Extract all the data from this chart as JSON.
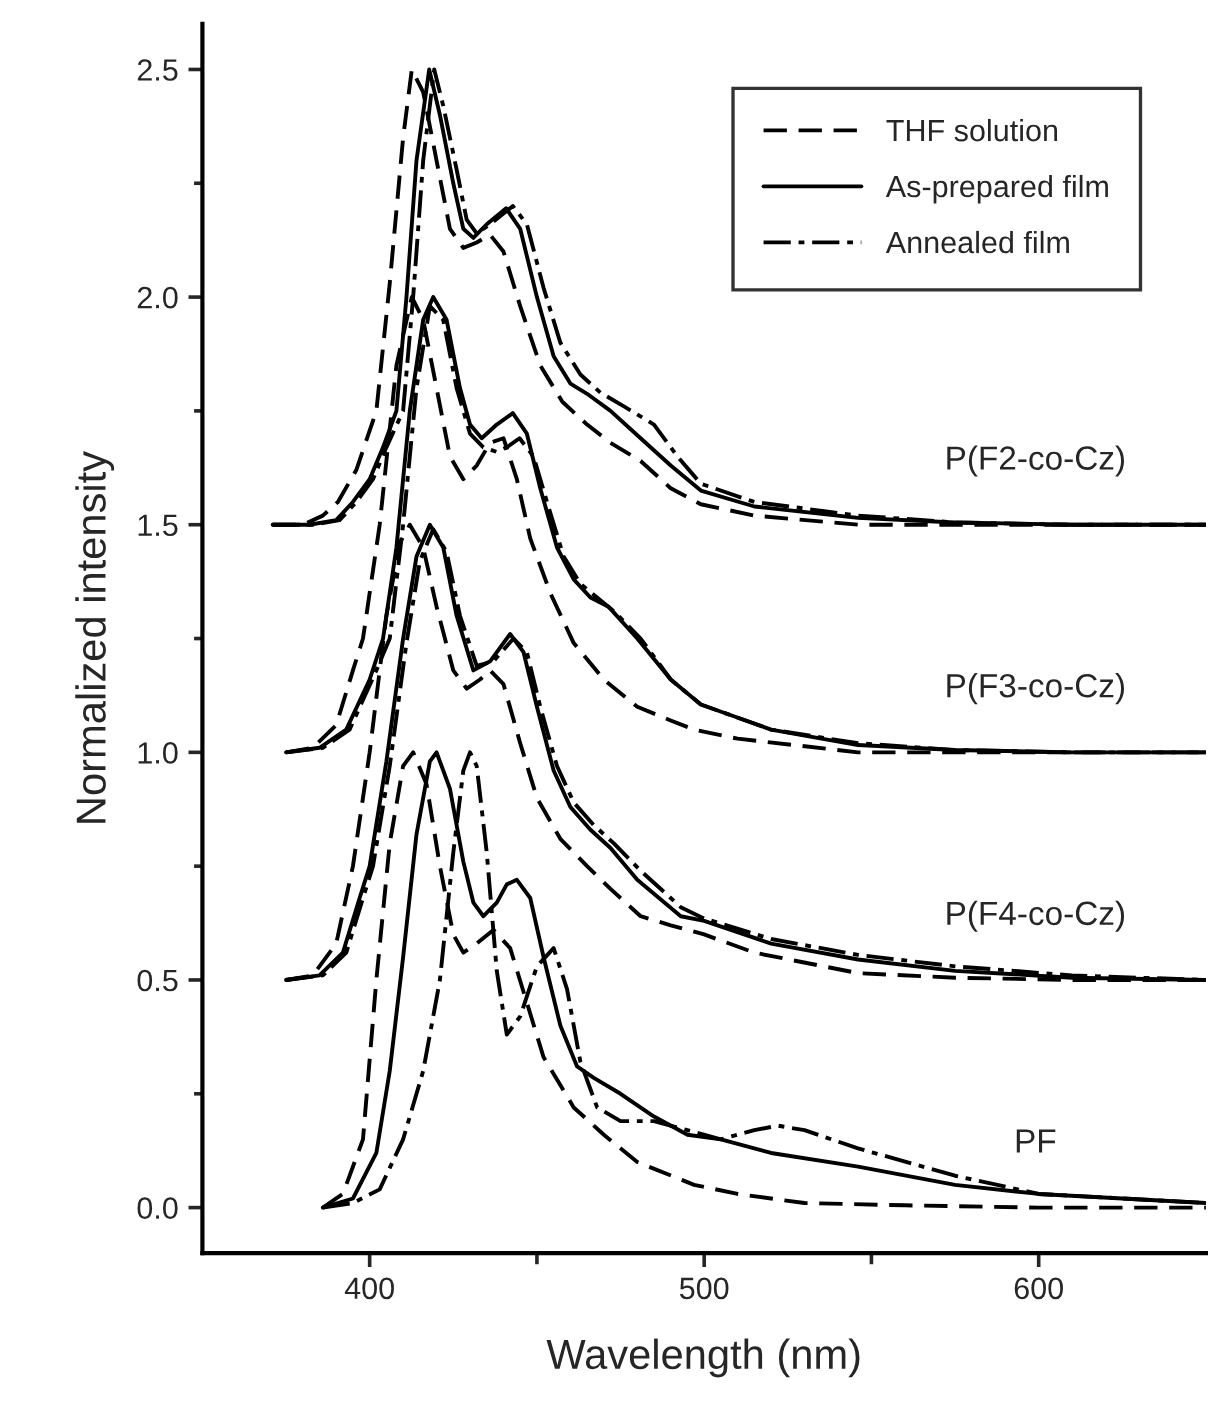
{
  "chart_data": {
    "type": "line",
    "xlabel": "Wavelength (nm)",
    "ylabel": "Normalized intensity",
    "xlim": [
      350,
      650
    ],
    "ylim": [
      -0.1,
      2.6
    ],
    "xticks": [
      400,
      {
        "value": 450,
        "label": null
      },
      500,
      {
        "value": 550,
        "label": null
      },
      600
    ],
    "yticks": [
      {
        "value": 0,
        "label": "0.0"
      },
      {
        "value": 0.25,
        "label": null
      },
      {
        "value": 0.5,
        "label": "0.5"
      },
      {
        "value": 0.75,
        "label": null
      },
      {
        "value": 1.0,
        "label": "1.0"
      },
      {
        "value": 1.25,
        "label": null
      },
      {
        "value": 1.5,
        "label": "1.5"
      },
      {
        "value": 1.75,
        "label": null
      },
      {
        "value": 2.0,
        "label": "2.0"
      },
      {
        "value": 2.25,
        "label": null
      },
      {
        "value": 2.5,
        "label": "2.5"
      }
    ],
    "grid": false,
    "legend": "top right",
    "marker": "none",
    "annotations": [
      "P(F2-co-Cz)",
      "P(F3-co-Cz)",
      "P(F4-co-Cz)",
      "PF"
    ],
    "series": [
      {
        "name": "THF solution",
        "color": "#000000",
        "line_style": "dashed",
        "x": [
          371,
          380,
          386,
          390.5,
          396,
          402,
          406,
          410,
          412.6,
          416,
          420,
          424,
          428,
          432,
          436,
          440,
          445,
          451,
          457.6,
          465,
          472,
          481,
          490,
          499,
          515,
          546,
          575,
          610,
          650
        ],
        "values": [
          1.5,
          1.5,
          1.52,
          1.55,
          1.62,
          1.75,
          2.03,
          2.35,
          2.5,
          2.45,
          2.3,
          2.15,
          2.108,
          2.12,
          2.137,
          2.1,
          1.98,
          1.85,
          1.77,
          1.72,
          1.68,
          1.64,
          1.58,
          1.545,
          1.52,
          1.5,
          1.5,
          1.5,
          1.5
        ]
      },
      {
        "name": "As-prepared film",
        "color": "#000000",
        "line_style": "solid",
        "x": [
          371,
          382,
          390,
          395,
          400,
          404,
          408,
          411,
          414,
          417.8,
          421,
          425,
          428,
          431,
          435,
          440.8,
          445,
          450,
          455,
          460,
          465.5,
          472,
          481,
          490,
          499,
          515,
          546,
          575,
          610,
          650
        ],
        "values": [
          1.5,
          1.5,
          1.51,
          1.55,
          1.6,
          1.67,
          1.75,
          2.0,
          2.3,
          2.5,
          2.4,
          2.25,
          2.15,
          2.13,
          2.16,
          2.195,
          2.15,
          2.0,
          1.87,
          1.81,
          1.785,
          1.75,
          1.69,
          1.63,
          1.575,
          1.54,
          1.515,
          1.505,
          1.5,
          1.5
        ]
      },
      {
        "name": "Annealed film",
        "color": "#000000",
        "line_style": "dashdot",
        "x": [
          371,
          383,
          391,
          396,
          401,
          405,
          410,
          413,
          416,
          419.3,
          422,
          426,
          429,
          432,
          436,
          442.8,
          447,
          452,
          457,
          463,
          469,
          476,
          485,
          492,
          499,
          515,
          546,
          575,
          610,
          650
        ],
        "values": [
          1.5,
          1.5,
          1.51,
          1.55,
          1.6,
          1.67,
          1.75,
          2.0,
          2.3,
          2.5,
          2.42,
          2.28,
          2.17,
          2.14,
          2.16,
          2.2,
          2.16,
          2.02,
          1.9,
          1.83,
          1.79,
          1.76,
          1.72,
          1.65,
          1.59,
          1.55,
          1.52,
          1.505,
          1.5,
          1.5
        ]
      },
      {
        "color": "#000000",
        "line_style": "dashed",
        "x": [
          375,
          383,
          390,
          395,
          398,
          403,
          408,
          412.6,
          416,
          420,
          424,
          428,
          432,
          436,
          440,
          444,
          448,
          454,
          461,
          470,
          480,
          490,
          497,
          510,
          546,
          575,
          610,
          650
        ],
        "values": [
          1.0,
          1.01,
          1.06,
          1.18,
          1.25,
          1.5,
          1.85,
          2.0,
          1.95,
          1.8,
          1.65,
          1.6,
          1.63,
          1.68,
          1.69,
          1.6,
          1.47,
          1.35,
          1.24,
          1.16,
          1.1,
          1.07,
          1.05,
          1.03,
          1.0,
          1.0,
          1.0,
          1.0
        ]
      },
      {
        "color": "#000000",
        "line_style": "solid",
        "x": [
          375,
          385,
          393,
          400,
          404,
          408,
          412,
          416,
          419,
          423,
          427,
          430,
          433.5,
          438,
          442.8,
          447,
          451,
          456,
          461,
          466,
          471.4,
          480,
          490,
          499,
          520,
          546,
          575,
          610,
          650
        ],
        "values": [
          1.0,
          1.01,
          1.05,
          1.16,
          1.25,
          1.45,
          1.75,
          1.95,
          2.0,
          1.95,
          1.8,
          1.72,
          1.69,
          1.72,
          1.745,
          1.7,
          1.58,
          1.45,
          1.38,
          1.34,
          1.32,
          1.25,
          1.16,
          1.105,
          1.05,
          1.016,
          1.005,
          1.0,
          1.0
        ]
      },
      {
        "color": "#000000",
        "line_style": "dashdot",
        "x": [
          375,
          386,
          394,
          402,
          406,
          410,
          414,
          418,
          422,
          426,
          430,
          434,
          438,
          441,
          444.8,
          449,
          453,
          458,
          463,
          468,
          473,
          481,
          490,
          499,
          520,
          546,
          575,
          610,
          650
        ],
        "values": [
          1.0,
          1.01,
          1.05,
          1.18,
          1.25,
          1.5,
          1.8,
          1.98,
          1.95,
          1.8,
          1.7,
          1.67,
          1.66,
          1.67,
          1.69,
          1.65,
          1.55,
          1.43,
          1.37,
          1.34,
          1.31,
          1.25,
          1.16,
          1.105,
          1.05,
          1.02,
          1.005,
          1.0,
          1.0
        ]
      },
      {
        "color": "#000000",
        "line_style": "dashed",
        "x": [
          375,
          383,
          390,
          395,
          400,
          405,
          409,
          412,
          416,
          420,
          425,
          429,
          433,
          436,
          440,
          445,
          450,
          457,
          465,
          472,
          481,
          490,
          500,
          515,
          546,
          575,
          610,
          650
        ],
        "values": [
          0.5,
          0.51,
          0.58,
          0.75,
          1.0,
          1.3,
          1.46,
          1.5,
          1.45,
          1.32,
          1.18,
          1.14,
          1.16,
          1.18,
          1.15,
          1.02,
          0.9,
          0.81,
          0.75,
          0.7,
          0.64,
          0.62,
          0.6,
          0.56,
          0.515,
          0.505,
          0.5,
          0.5
        ]
      },
      {
        "color": "#000000",
        "line_style": "solid",
        "x": [
          375,
          385,
          392,
          397,
          400,
          405,
          410,
          414,
          418,
          422,
          426,
          431,
          436,
          442,
          446,
          450,
          455,
          460,
          466,
          472,
          480,
          493,
          500,
          520,
          546,
          575,
          610,
          650
        ],
        "values": [
          0.5,
          0.51,
          0.56,
          0.68,
          0.75,
          0.98,
          1.25,
          1.43,
          1.5,
          1.45,
          1.3,
          1.18,
          1.2,
          1.26,
          1.22,
          1.1,
          0.96,
          0.88,
          0.83,
          0.79,
          0.72,
          0.64,
          0.63,
          0.58,
          0.545,
          0.52,
          0.505,
          0.5
        ]
      },
      {
        "color": "#000000",
        "line_style": "dashdot",
        "x": [
          375,
          386,
          393,
          398,
          401,
          406,
          411,
          415,
          419,
          423,
          427,
          432,
          437,
          443,
          447,
          451,
          456,
          461,
          467,
          473,
          481,
          493,
          500,
          520,
          546,
          575,
          610,
          650
        ],
        "values": [
          0.5,
          0.51,
          0.56,
          0.68,
          0.75,
          0.97,
          1.24,
          1.42,
          1.49,
          1.44,
          1.3,
          1.19,
          1.2,
          1.25,
          1.22,
          1.1,
          0.97,
          0.89,
          0.84,
          0.8,
          0.74,
          0.66,
          0.635,
          0.59,
          0.555,
          0.53,
          0.51,
          0.5
        ]
      },
      {
        "color": "#000000",
        "line_style": "dashed",
        "x": [
          386,
          392,
          398,
          402,
          406,
          410,
          413,
          417,
          421,
          425,
          428,
          432,
          437,
          442,
          447,
          452,
          461,
          470,
          480,
          497,
          510,
          530,
          560,
          600,
          650
        ],
        "values": [
          0,
          0.03,
          0.15,
          0.5,
          0.8,
          0.97,
          1.0,
          0.93,
          0.75,
          0.6,
          0.56,
          0.58,
          0.61,
          0.57,
          0.45,
          0.33,
          0.22,
          0.16,
          0.1,
          0.05,
          0.03,
          0.01,
          0.005,
          0,
          0
        ]
      },
      {
        "color": "#000000",
        "line_style": "solid",
        "x": [
          386,
          395,
          402,
          406,
          410,
          414,
          418,
          420,
          424,
          428,
          431,
          434,
          438,
          441,
          444,
          448,
          452,
          457,
          462,
          467,
          475,
          485,
          495,
          505,
          520,
          546,
          575,
          600,
          650
        ],
        "values": [
          0,
          0.02,
          0.12,
          0.3,
          0.55,
          0.82,
          0.98,
          1.0,
          0.92,
          0.76,
          0.67,
          0.64,
          0.67,
          0.71,
          0.72,
          0.68,
          0.55,
          0.4,
          0.31,
          0.285,
          0.25,
          0.2,
          0.16,
          0.15,
          0.12,
          0.09,
          0.05,
          0.03,
          0.01
        ]
      },
      {
        "color": "#000000",
        "line_style": "dashdot",
        "x": [
          386,
          395,
          403,
          410,
          416,
          421,
          425,
          428,
          430,
          432,
          435,
          438,
          441,
          445,
          450,
          455,
          459,
          463,
          468,
          475,
          485,
          495,
          505,
          515,
          522,
          530,
          546,
          575,
          600,
          650
        ],
        "values": [
          0,
          0.01,
          0.04,
          0.15,
          0.3,
          0.5,
          0.78,
          0.96,
          1.0,
          0.97,
          0.78,
          0.52,
          0.38,
          0.42,
          0.53,
          0.57,
          0.48,
          0.32,
          0.22,
          0.19,
          0.19,
          0.17,
          0.15,
          0.17,
          0.18,
          0.17,
          0.13,
          0.07,
          0.03,
          0.01
        ]
      }
    ]
  }
}
